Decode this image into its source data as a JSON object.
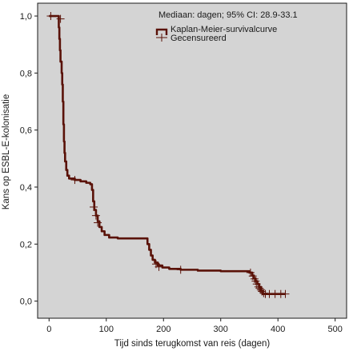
{
  "chart_data": {
    "type": "line",
    "annotation": "Mediaan: dagen; 95% CI: 28.9-33.1",
    "xlabel": "Tijd sinds terugkomst van reis (dagen)",
    "ylabel": "Kans op ESBL-E-kolonisatie",
    "xlim": [
      -20,
      520
    ],
    "ylim": [
      -0.06,
      1.045
    ],
    "x_ticks": [
      0,
      100,
      200,
      300,
      400,
      500
    ],
    "x_tick_labels": [
      "0",
      "100",
      "200",
      "300",
      "400",
      "500"
    ],
    "y_ticks": [
      0.0,
      0.2,
      0.4,
      0.6,
      0.8,
      1.0
    ],
    "y_tick_labels": [
      "0,0",
      "0,2",
      "0,4",
      "0,6",
      "0,8",
      "1,0"
    ],
    "grid": false,
    "legend_position": "top-right",
    "background_color": "#d4d4d4",
    "line_color": "#5a1208",
    "censor_color": "#5a1208",
    "series": [
      {
        "name": "Kaplan-Meier-survivalcurve",
        "kind": "step",
        "points": [
          [
            0,
            1.0
          ],
          [
            15,
            1.0
          ],
          [
            17,
            0.96
          ],
          [
            18,
            0.92
          ],
          [
            19,
            0.88
          ],
          [
            20,
            0.84
          ],
          [
            22,
            0.8
          ],
          [
            23,
            0.76
          ],
          [
            24,
            0.7
          ],
          [
            25,
            0.62
          ],
          [
            26,
            0.56
          ],
          [
            27,
            0.52
          ],
          [
            28,
            0.49
          ],
          [
            30,
            0.46
          ],
          [
            32,
            0.44
          ],
          [
            35,
            0.43
          ],
          [
            45,
            0.425
          ],
          [
            55,
            0.42
          ],
          [
            65,
            0.415
          ],
          [
            72,
            0.41
          ],
          [
            75,
            0.39
          ],
          [
            77,
            0.35
          ],
          [
            79,
            0.32
          ],
          [
            82,
            0.3
          ],
          [
            85,
            0.28
          ],
          [
            88,
            0.26
          ],
          [
            92,
            0.245
          ],
          [
            97,
            0.232
          ],
          [
            105,
            0.223
          ],
          [
            120,
            0.22
          ],
          [
            170,
            0.22
          ],
          [
            172,
            0.2
          ],
          [
            175,
            0.18
          ],
          [
            178,
            0.16
          ],
          [
            181,
            0.145
          ],
          [
            185,
            0.135
          ],
          [
            190,
            0.125
          ],
          [
            198,
            0.118
          ],
          [
            210,
            0.113
          ],
          [
            230,
            0.11
          ],
          [
            260,
            0.107
          ],
          [
            300,
            0.105
          ],
          [
            345,
            0.105
          ],
          [
            350,
            0.1
          ],
          [
            355,
            0.09
          ],
          [
            358,
            0.08
          ],
          [
            361,
            0.07
          ],
          [
            364,
            0.06
          ],
          [
            367,
            0.05
          ],
          [
            370,
            0.035
          ],
          [
            373,
            0.025
          ],
          [
            413,
            0.025
          ]
        ]
      }
    ],
    "censored_label": "Gecensureerd",
    "censored": [
      [
        3,
        1.0
      ],
      [
        20,
        0.99
      ],
      [
        45,
        0.425
      ],
      [
        78,
        0.33
      ],
      [
        82,
        0.3
      ],
      [
        85,
        0.275
      ],
      [
        187,
        0.13
      ],
      [
        192,
        0.12
      ],
      [
        230,
        0.11
      ],
      [
        352,
        0.1
      ],
      [
        356,
        0.088
      ],
      [
        359,
        0.078
      ],
      [
        361,
        0.07
      ],
      [
        363,
        0.06
      ],
      [
        366,
        0.05
      ],
      [
        368,
        0.045
      ],
      [
        370,
        0.04
      ],
      [
        372,
        0.034
      ],
      [
        375,
        0.028
      ],
      [
        378,
        0.025
      ],
      [
        385,
        0.025
      ],
      [
        395,
        0.025
      ],
      [
        405,
        0.025
      ],
      [
        413,
        0.025
      ]
    ]
  }
}
